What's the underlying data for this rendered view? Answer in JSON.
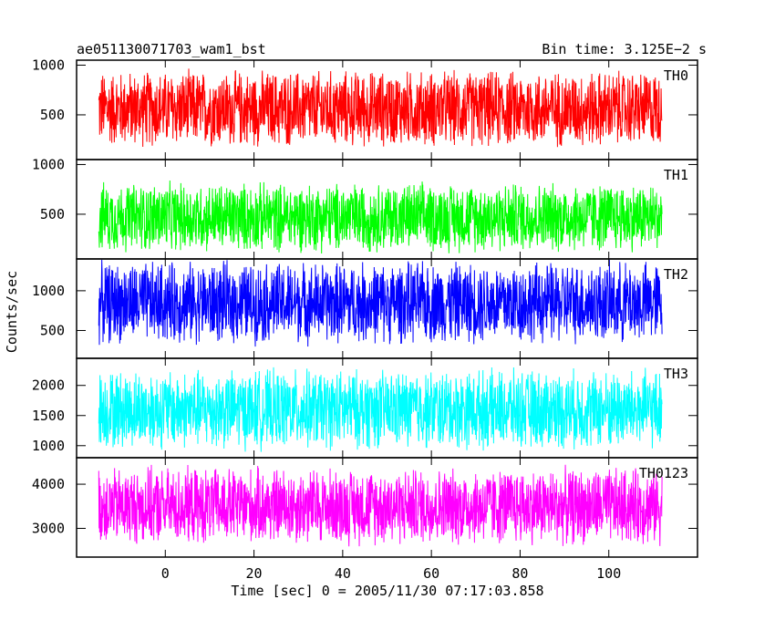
{
  "chart_data": {
    "type": "line",
    "title_left": "ae051130071703_wam1_bst",
    "title_right": "Bin time: 3.125E−2 s",
    "xlabel": "Time [sec] 0 = 2005/11/30 07:17:03.858",
    "ylabel": "Counts/sec",
    "xlim": [
      -20,
      120
    ],
    "x_range": [
      -15,
      112
    ],
    "x_ticks": [
      0,
      20,
      40,
      60,
      80,
      100
    ],
    "grid": false,
    "panels": [
      {
        "name": "TH0",
        "color": "#ff0000",
        "ylim": [
          50,
          1050
        ],
        "y_ticks": [
          500,
          1000
        ],
        "mean": 560,
        "amplitude": 420
      },
      {
        "name": "TH1",
        "color": "#00ff00",
        "ylim": [
          50,
          1050
        ],
        "y_ticks": [
          500,
          1000
        ],
        "mean": 470,
        "amplitude": 380
      },
      {
        "name": "TH2",
        "color": "#0000ff",
        "ylim": [
          150,
          1400
        ],
        "y_ticks": [
          500,
          1000
        ],
        "mean": 850,
        "amplitude": 560
      },
      {
        "name": "TH3",
        "color": "#00ffff",
        "ylim": [
          800,
          2450
        ],
        "y_ticks": [
          1000,
          1500,
          2000
        ],
        "mean": 1600,
        "amplitude": 720
      },
      {
        "name": "TH0123",
        "color": "#ff00ff",
        "ylim": [
          2350,
          4600
        ],
        "y_ticks": [
          3000,
          4000
        ],
        "mean": 3500,
        "amplitude": 950
      }
    ]
  }
}
